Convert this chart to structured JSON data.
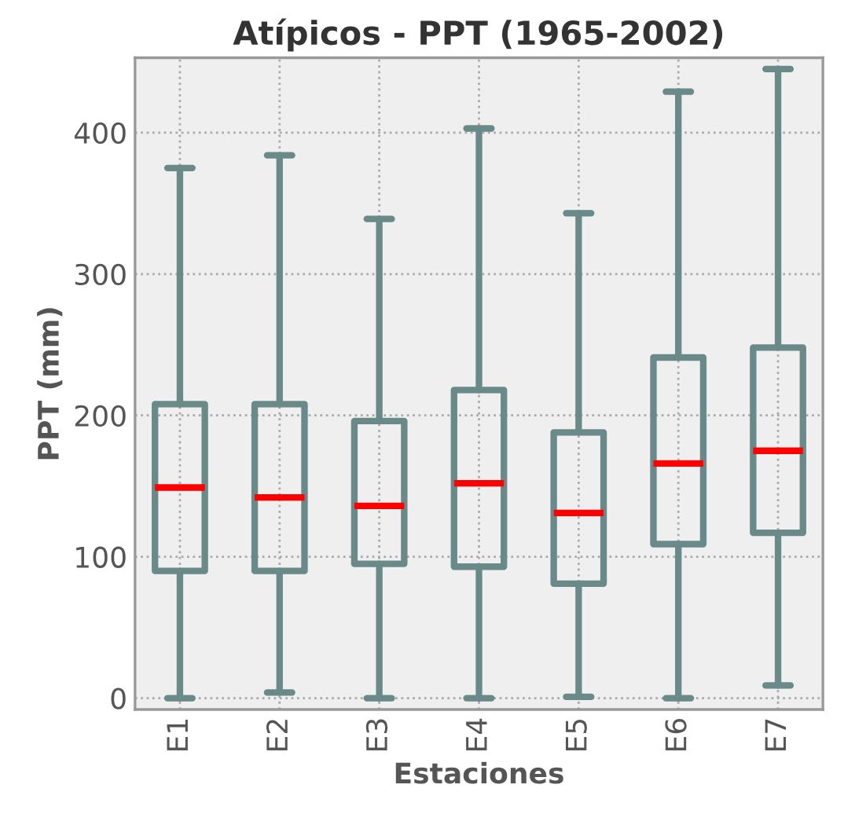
{
  "chart_data": {
    "type": "box",
    "title": "Atípicos - PPT (1965-2002)",
    "xlabel": "Estaciones",
    "ylabel": "PPT (mm)",
    "categories": [
      "E1",
      "E2",
      "E3",
      "E4",
      "E5",
      "E6",
      "E7"
    ],
    "series": [
      {
        "color": "#6a8a8a",
        "boxes": [
          {
            "low": 0,
            "q1": 90,
            "median": 149,
            "q3": 208,
            "high": 375
          },
          {
            "low": 4,
            "q1": 90,
            "median": 142,
            "q3": 208,
            "high": 384
          },
          {
            "low": 0,
            "q1": 95,
            "median": 136,
            "q3": 196,
            "high": 339
          },
          {
            "low": 0,
            "q1": 93,
            "median": 152,
            "q3": 218,
            "high": 403
          },
          {
            "low": 1,
            "q1": 81,
            "median": 131,
            "q3": 188,
            "high": 343
          },
          {
            "low": 0,
            "q1": 109,
            "median": 166,
            "q3": 241,
            "high": 429
          },
          {
            "low": 9,
            "q1": 117,
            "median": 175,
            "q3": 248,
            "high": 445
          }
        ]
      }
    ],
    "ylim": [
      -8,
      453
    ],
    "yticks": [
      0,
      100,
      200,
      300,
      400
    ],
    "grid": true,
    "legend": false
  }
}
